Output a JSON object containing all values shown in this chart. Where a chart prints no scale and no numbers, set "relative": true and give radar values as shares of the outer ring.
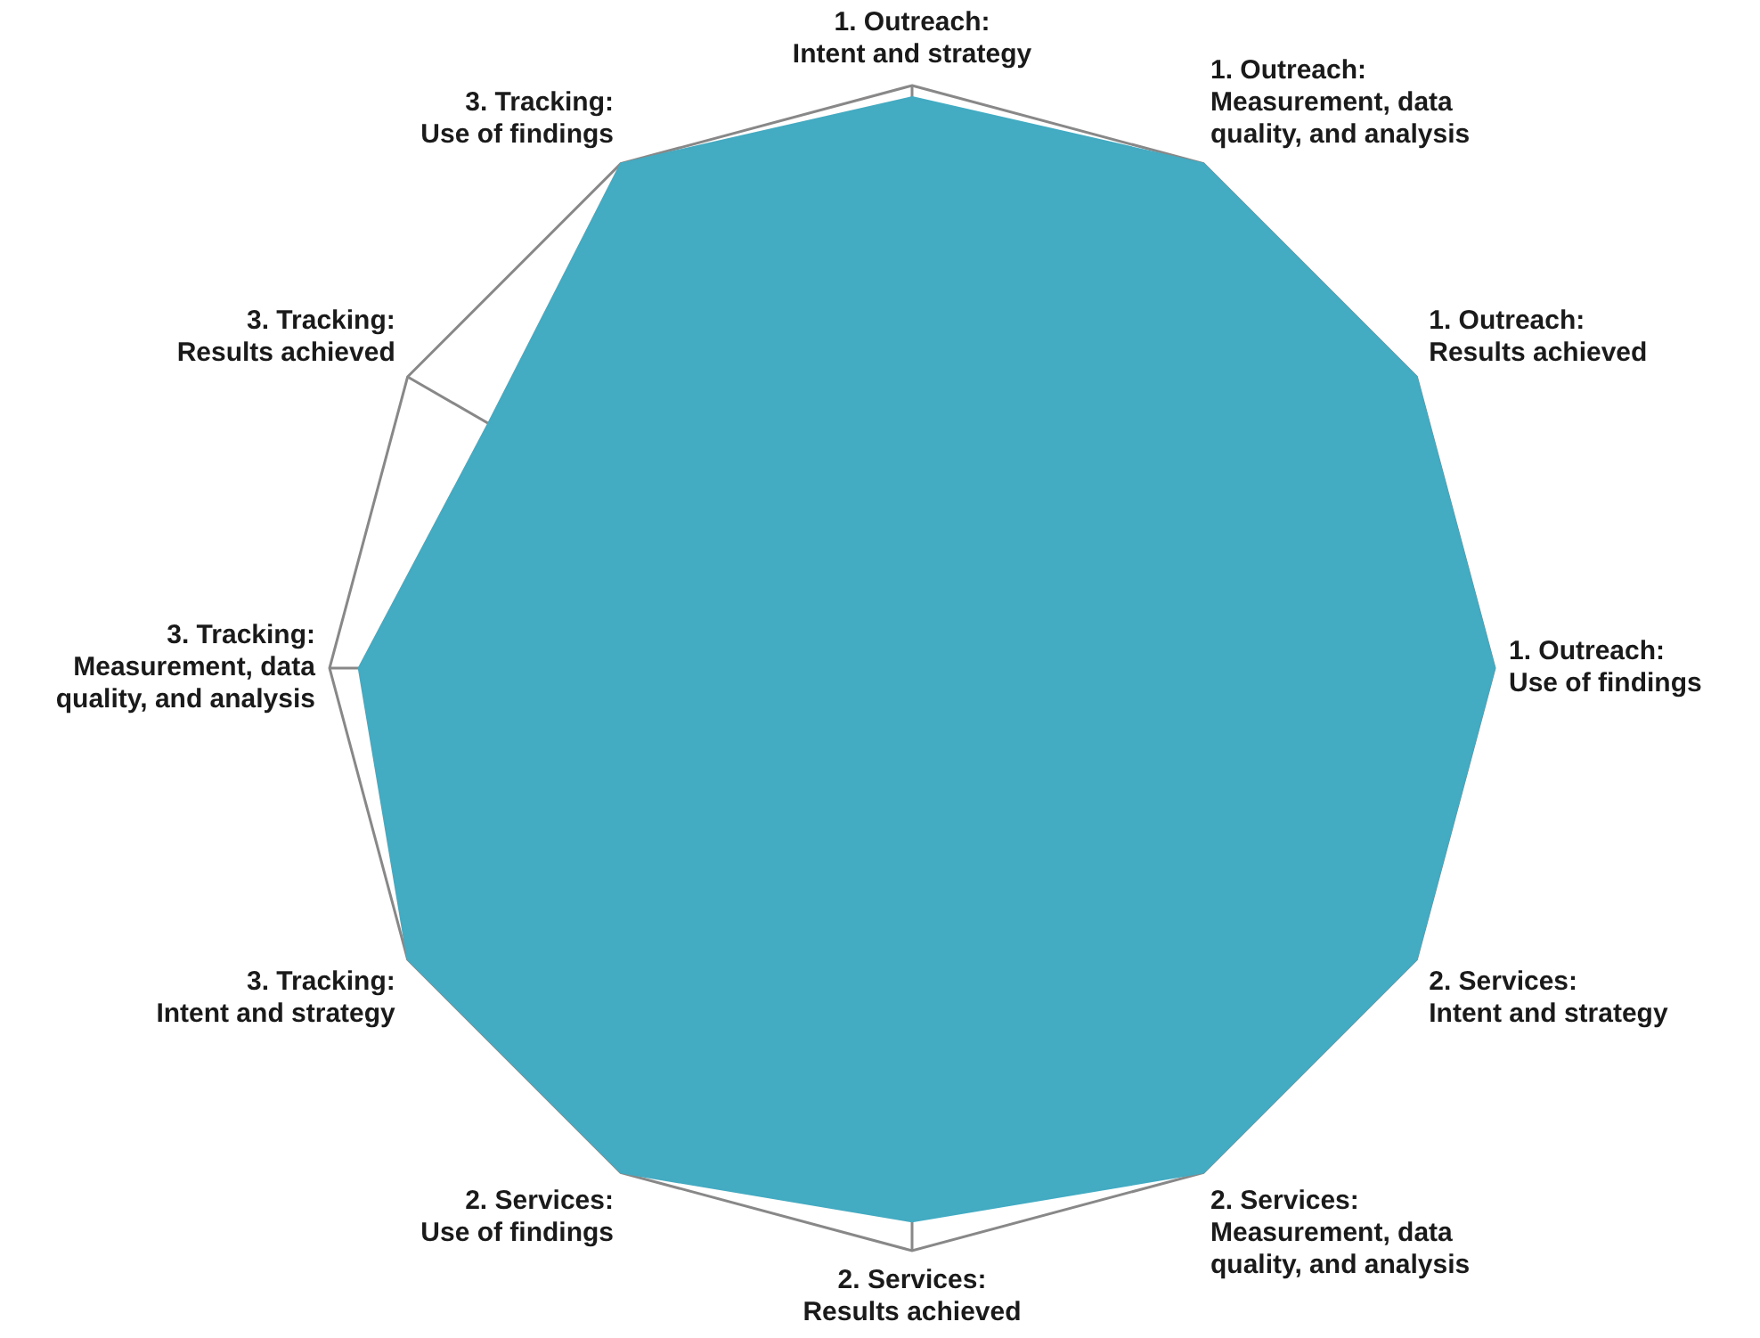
{
  "chart_data": {
    "type": "radar",
    "relative": true,
    "grid": true,
    "legend": false,
    "marker": "none",
    "categories": [
      "1. Outreach: Intent and strategy",
      "1. Outreach: Measurement, data quality, and analysis",
      "1. Outreach: Results achieved",
      "1. Outreach: Use of findings",
      "2. Services: Intent and strategy",
      "2. Services: Measurement, data quality, and analysis",
      "2. Services: Results achieved",
      "2. Services: Use of findings",
      "3. Tracking: Intent and strategy",
      "3. Tracking: Measurement, data quality, and analysis",
      "3. Tracking: Results achieved",
      "3. Tracking: Use of findings"
    ],
    "series": [
      {
        "color": "#43abc2",
        "values": [
          0.98,
          1,
          1,
          1,
          1,
          1,
          0.95,
          1,
          1,
          0.95,
          0.84,
          1
        ]
      }
    ]
  }
}
